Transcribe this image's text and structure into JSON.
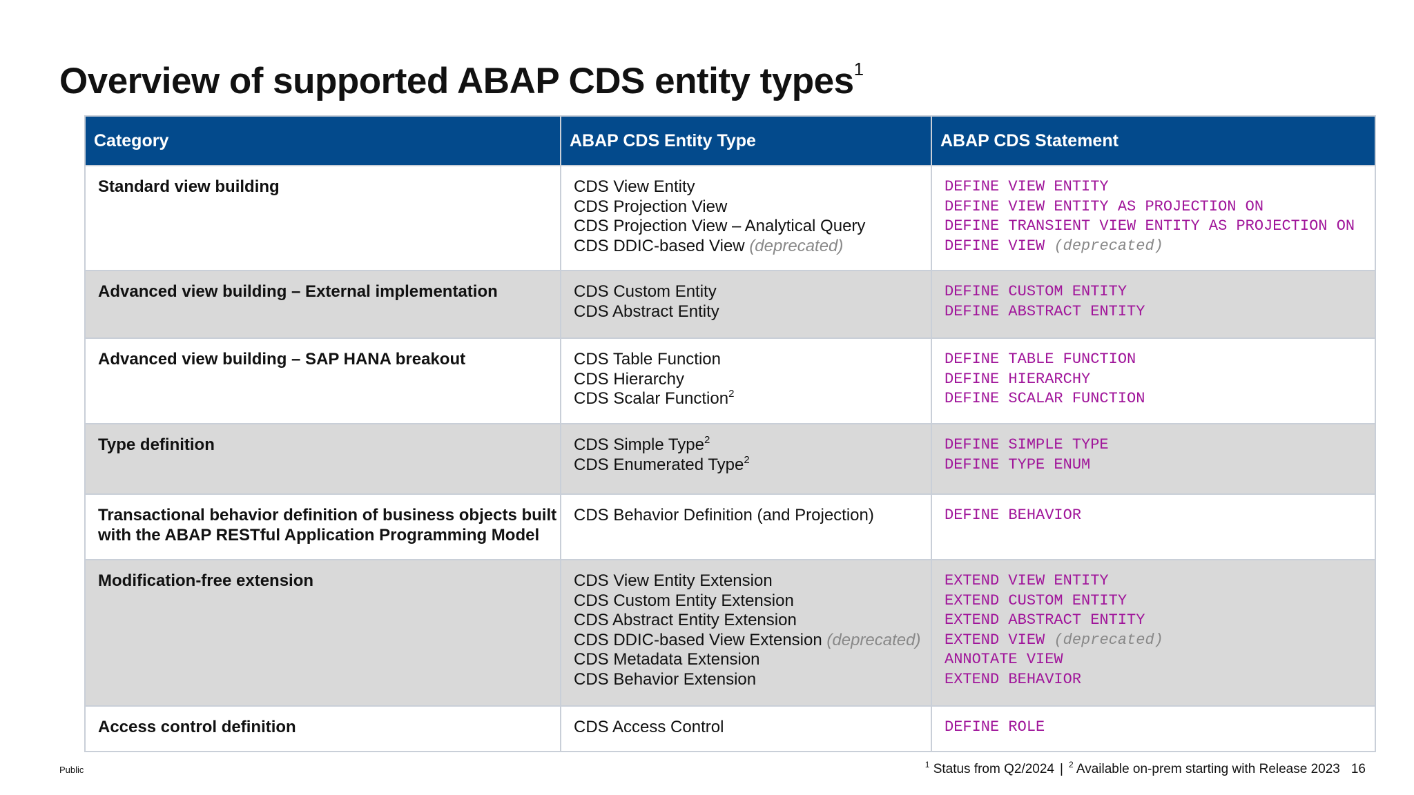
{
  "title": "Overview of supported ABAP CDS entity types",
  "title_footnote": "1",
  "table": {
    "headers": [
      "Category",
      "ABAP CDS Entity Type",
      "ABAP CDS Statement"
    ],
    "rows": [
      {
        "category": [
          "Standard view building"
        ],
        "entity_types": [
          {
            "text": "CDS View Entity"
          },
          {
            "text": "CDS Projection View"
          },
          {
            "text": "CDS Projection View – Analytical Query"
          },
          {
            "text": "CDS DDIC-based View",
            "note": "(deprecated)"
          }
        ],
        "statements": [
          {
            "text": "DEFINE VIEW ENTITY"
          },
          {
            "text": "DEFINE VIEW ENTITY AS PROJECTION ON"
          },
          {
            "text": "DEFINE TRANSIENT VIEW ENTITY AS PROJECTION ON"
          },
          {
            "text": "DEFINE VIEW",
            "note": "(deprecated)"
          }
        ]
      },
      {
        "category": [
          "Advanced view building – External  implementation"
        ],
        "entity_types": [
          {
            "text": "CDS Custom Entity"
          },
          {
            "text": "CDS Abstract Entity"
          }
        ],
        "statements": [
          {
            "text": "DEFINE CUSTOM ENTITY"
          },
          {
            "text": "DEFINE ABSTRACT ENTITY"
          }
        ]
      },
      {
        "category": [
          "Advanced view building – SAP HANA breakout"
        ],
        "entity_types": [
          {
            "text": "CDS Table Function"
          },
          {
            "text": "CDS Hierarchy"
          },
          {
            "text": "CDS Scalar Function",
            "sup": "2"
          }
        ],
        "statements": [
          {
            "text": "DEFINE TABLE FUNCTION"
          },
          {
            "text": "DEFINE HIERARCHY"
          },
          {
            "text": "DEFINE SCALAR FUNCTION"
          }
        ]
      },
      {
        "category": [
          "Type definition"
        ],
        "entity_types": [
          {
            "text": "CDS Simple Type",
            "sup": "2"
          },
          {
            "text": "CDS Enumerated Type",
            "sup": "2"
          }
        ],
        "statements": [
          {
            "text": "DEFINE SIMPLE TYPE"
          },
          {
            "text": "DEFINE TYPE ENUM"
          }
        ]
      },
      {
        "category": [
          "Transactional behavior definition of business objects built",
          "with the ABAP RESTful Application Programming Model"
        ],
        "entity_types": [
          {
            "text": "CDS Behavior Definition (and Projection)"
          }
        ],
        "statements": [
          {
            "text": "DEFINE BEHAVIOR"
          }
        ]
      },
      {
        "category": [
          "Modification-free extension"
        ],
        "entity_types": [
          {
            "text": "CDS View Entity Extension"
          },
          {
            "text": "CDS Custom Entity Extension"
          },
          {
            "text": "CDS Abstract Entity Extension"
          },
          {
            "text": "CDS DDIC-based View Extension",
            "note": "(deprecated)"
          },
          {
            "text": "CDS Metadata Extension"
          },
          {
            "text": "CDS Behavior Extension"
          }
        ],
        "statements": [
          {
            "text": "EXTEND VIEW ENTITY"
          },
          {
            "text": "EXTEND CUSTOM ENTITY"
          },
          {
            "text": "EXTEND ABSTRACT ENTITY"
          },
          {
            "text": "EXTEND VIEW",
            "note": "(deprecated)"
          },
          {
            "text": "ANNOTATE VIEW"
          },
          {
            "text": "EXTEND BEHAVIOR"
          }
        ]
      },
      {
        "category": [
          "Access control definition"
        ],
        "entity_types": [
          {
            "text": "CDS Access Control"
          }
        ],
        "statements": [
          {
            "text": "DEFINE ROLE"
          }
        ]
      }
    ]
  },
  "footer": {
    "classification": "Public",
    "footnote1_marker": "1",
    "footnote1_text": "Status from Q2/2024",
    "separator": "|",
    "footnote2_marker": "2",
    "footnote2_text": "Available on-prem starting with Release 2023",
    "page_number": "16"
  },
  "colors": {
    "header_bg": "#034a8c",
    "shade_bg": "#d9d9d9",
    "code": "#a0159a",
    "deprecated": "#888888"
  }
}
